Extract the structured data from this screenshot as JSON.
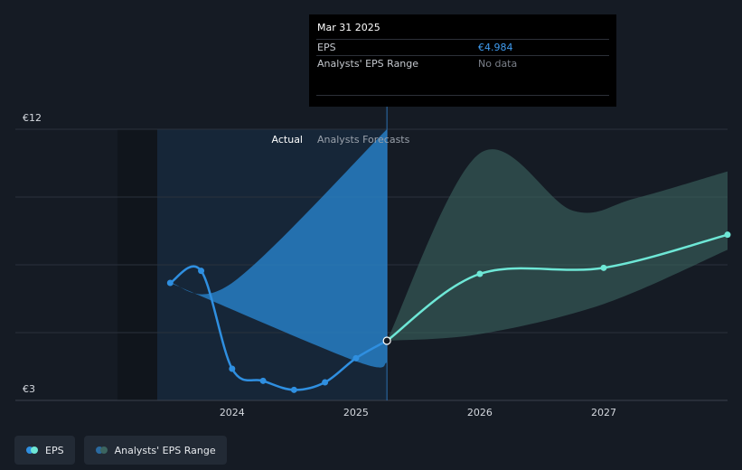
{
  "chart_data": {
    "type": "line",
    "currency": "€",
    "y_axis_labels": {
      "top": "€12",
      "bottom": "€3"
    },
    "ylim": [
      3,
      12
    ],
    "x_ticks": [
      {
        "label": "2024",
        "x": 2024.0
      },
      {
        "label": "2025",
        "x": 2025.0
      },
      {
        "label": "2026",
        "x": 2026.0
      },
      {
        "label": "2027",
        "x": 2027.0
      }
    ],
    "xlim": [
      2022.25,
      2028.0
    ],
    "divider_x": 2025.25,
    "regions": {
      "actual": "Actual",
      "forecast": "Analysts Forecasts"
    },
    "series": [
      {
        "name": "EPS",
        "color": "#2f8fe0",
        "points": [
          {
            "x": 2023.5,
            "y": 6.9
          },
          {
            "x": 2023.75,
            "y": 7.3
          },
          {
            "x": 2024.0,
            "y": 4.05
          },
          {
            "x": 2024.25,
            "y": 3.65
          },
          {
            "x": 2024.5,
            "y": 3.35
          },
          {
            "x": 2024.75,
            "y": 3.6
          },
          {
            "x": 2025.0,
            "y": 4.4
          },
          {
            "x": 2025.25,
            "y": 4.98
          }
        ]
      },
      {
        "name": "EPS Forecast",
        "color": "#6ee7d6",
        "points": [
          {
            "x": 2025.25,
            "y": 4.98
          },
          {
            "x": 2026.0,
            "y": 7.2
          },
          {
            "x": 2027.0,
            "y": 7.4
          },
          {
            "x": 2028.0,
            "y": 8.5
          }
        ]
      }
    ],
    "ranges": [
      {
        "name": "Analysts' EPS Range (past)",
        "color": "#2a8ad6",
        "upper": [
          {
            "x": 2023.5,
            "y": 6.9
          },
          {
            "x": 2024.0,
            "y": 6.9
          },
          {
            "x": 2025.25,
            "y": 12.0
          }
        ],
        "lower": [
          {
            "x": 2023.5,
            "y": 6.9
          },
          {
            "x": 2025.0,
            "y": 4.3
          },
          {
            "x": 2025.25,
            "y": 4.25
          }
        ]
      },
      {
        "name": "Analysts' EPS Range",
        "color": "#3c6560",
        "upper": [
          {
            "x": 2025.25,
            "y": 4.98
          },
          {
            "x": 2026.0,
            "y": 11.2
          },
          {
            "x": 2026.75,
            "y": 9.3
          },
          {
            "x": 2027.25,
            "y": 9.7
          },
          {
            "x": 2028.0,
            "y": 10.6
          }
        ],
        "lower": [
          {
            "x": 2025.25,
            "y": 4.98
          },
          {
            "x": 2026.0,
            "y": 5.2
          },
          {
            "x": 2027.0,
            "y": 6.2
          },
          {
            "x": 2028.0,
            "y": 8.0
          }
        ]
      }
    ]
  },
  "tooltip": {
    "date": "Mar 31 2025",
    "rows": [
      {
        "label": "EPS",
        "value": "€4.984"
      },
      {
        "label": "Analysts' EPS Range",
        "value": "No data"
      }
    ]
  },
  "legend": [
    {
      "label": "EPS",
      "colors": [
        "#2f8fe0",
        "#6ee7d6"
      ]
    },
    {
      "label": "Analysts' EPS Range",
      "colors": [
        "#2a6aa0",
        "#3c6560"
      ]
    }
  ]
}
